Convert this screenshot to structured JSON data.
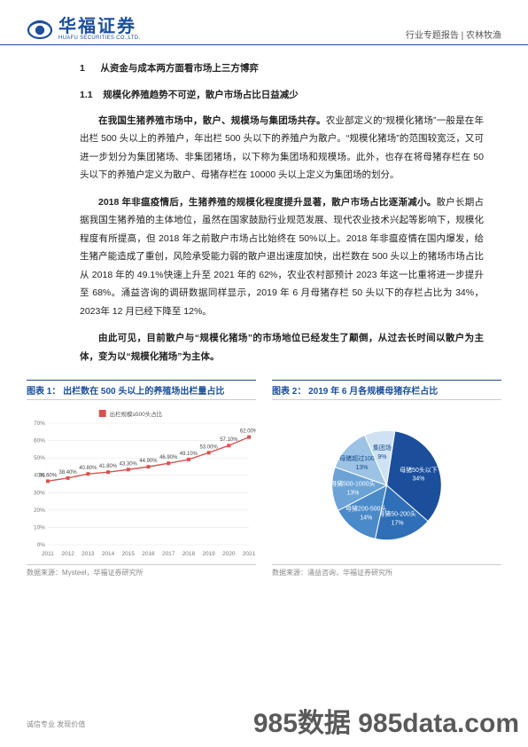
{
  "header": {
    "logo_cn": "华福证券",
    "logo_en": "HUAFU SECURITIES CO.,LTD.",
    "right": "行业专题报告 | 农林牧渔"
  },
  "section": {
    "h1_num": "1",
    "h1": "从资金与成本两方面看市场上三方博弈",
    "h2_num": "1.1",
    "h2": "规模化养殖趋势不可逆，散户市场占比日益减少",
    "p1_lead": "在我国生猪养殖市场中，散户、规模场与集团场共存。",
    "p1_body": "农业部定义的“规模化猪场”一般是在年出栏 500 头以上的养殖户，年出栏 500 头以下的养殖户为散户。“规模化猪场”的范围较宽泛，又可进一步划分为集团猪场、非集团猪场，以下称为集团场和规模场。此外，也存在将母猪存栏在 50 头以下的养殖户定义为散户、母猪存栏在 10000 头以上定义为集团场的划分。",
    "p2_lead": "2018 年非瘟疫情后，生猪养殖的规模化程度提升显著，散户市场占比逐渐减小。",
    "p2_body": "散户长期占据我国生猪养殖的主体地位，虽然在国家鼓励行业规范发展、现代农业技术兴起等影响下，规模化程度有所提高，但 2018 年之前散户市场占比始终在 50%以上。2018 年非瘟疫情在国内爆发，给生猪产能造成了重创，风险承受能力弱的散户退出速度加快，出栏数在 500 头以上的猪场市场占比从 2018 年的 49.1%快速上升至 2021 年的 62%，农业农村部预计 2023 年这一比重将进一步提升至 68%。涌益咨询的调研数据同样显示，2019 年 6 月母猪存栏 50 头以下的存栏占比为 34%，2023年 12 月已经下降至 12%。",
    "p3_lead": "由此可见，目前散户与“规模化猪场”的市场地位已经发生了颠倒，",
    "p3_body": "从过去长时间以散户为主体，变为以“规模化猪场”为主体。"
  },
  "chart1": {
    "title": "图表 1： 出栏数在 500 头以上的养殖场出栏量占比",
    "source": "数据来源：Mysteel，华福证券研究所",
    "legend": "出栏规模≥500头占比",
    "type": "line",
    "x": [
      "2011",
      "2012",
      "2013",
      "2014",
      "2015",
      "2016",
      "2017",
      "2018",
      "2019",
      "2020",
      "2021"
    ],
    "y": [
      36.6,
      38.4,
      40.8,
      41.8,
      43.3,
      44.9,
      46.9,
      49.1,
      53.0,
      57.1,
      62.0
    ],
    "labels": [
      "36.60%",
      "38.40%",
      "40.80%",
      "41.80%",
      "43.30%",
      "44.90%",
      "46.90%",
      "49.10%",
      "53.00%",
      "57.10%",
      "62.00%"
    ],
    "ylim": [
      0,
      70
    ],
    "ytick_step": 10,
    "line_color": "#d9534f",
    "marker_color": "#d9534f",
    "background_color": "#ffffff",
    "grid_color": "#e8e8e8",
    "label_fontsize": 6
  },
  "chart2": {
    "title": "图表 2： 2019 年 6 月各规模母猪存栏占比",
    "source": "数据来源：涌益咨询，华福证券研究所",
    "type": "pie",
    "slices": [
      {
        "label": "母猪50头以下",
        "sub": "34%",
        "value": 34,
        "color": "#1b4f9c"
      },
      {
        "label": "母猪50-200头",
        "sub": "17%",
        "value": 17,
        "color": "#2e6fb7"
      },
      {
        "label": "母猪200-500头",
        "sub": "14%",
        "value": 14,
        "color": "#4a8ac9"
      },
      {
        "label": "母猪500-1000头",
        "sub": "13%",
        "value": 13,
        "color": "#6ba3d6"
      },
      {
        "label": "母猪超过1000头",
        "sub": "13%",
        "value": 13,
        "color": "#9cc3e4"
      },
      {
        "label": "集团场",
        "sub": "9%",
        "value": 9,
        "color": "#cfe2f3"
      }
    ],
    "background_color": "#ffffff"
  },
  "footer": {
    "left": "诚信专业  发现价值"
  },
  "watermark": "985数据 985data.com"
}
